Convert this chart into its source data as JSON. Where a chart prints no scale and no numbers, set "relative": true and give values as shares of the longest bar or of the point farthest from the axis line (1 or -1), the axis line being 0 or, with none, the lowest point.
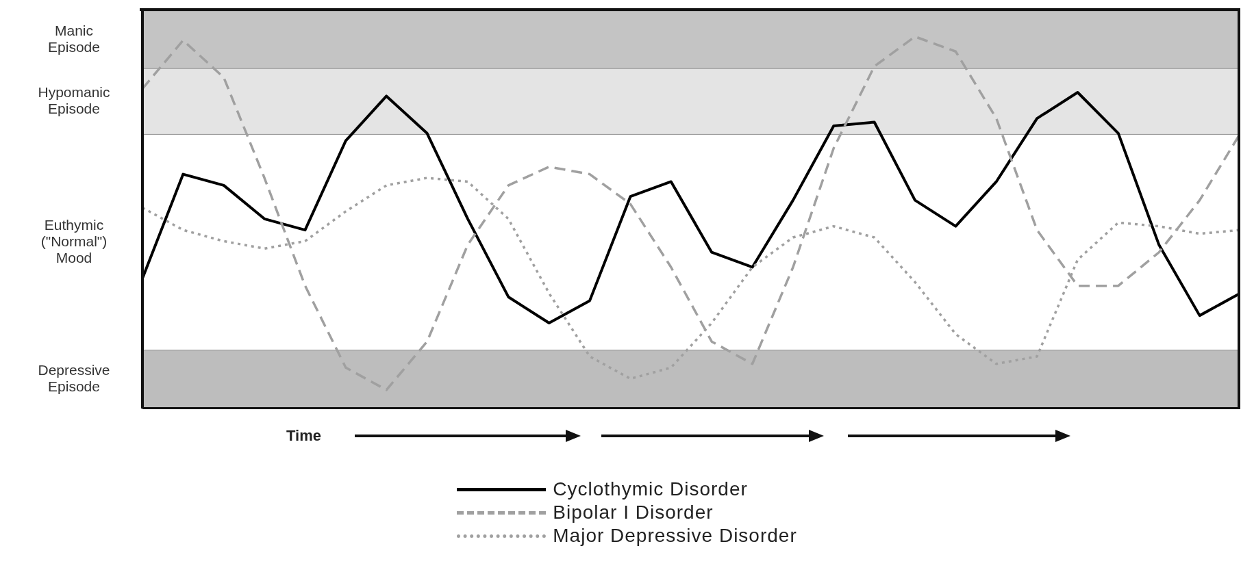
{
  "chart_data": {
    "type": "line",
    "relative": true,
    "xlabel": "Time",
    "legend": "bottom",
    "categories": [
      null,
      null,
      null,
      null,
      null,
      null,
      null,
      null,
      null,
      null,
      null,
      null,
      null,
      null,
      null,
      null,
      null,
      null,
      null,
      null,
      null,
      null,
      null,
      null,
      null,
      null,
      null,
      null
    ],
    "series": [
      {
        "name": "Cyclothymic Disorder",
        "color": "#000000",
        "line_style": "solid",
        "values": [
          0.35,
          0.63,
          0.6,
          0.51,
          0.48,
          0.72,
          0.84,
          0.74,
          0.51,
          0.3,
          0.23,
          0.29,
          0.57,
          0.61,
          0.42,
          0.38,
          0.56,
          0.76,
          0.77,
          0.56,
          0.49,
          0.61,
          0.78,
          0.85,
          0.74,
          0.44,
          0.25,
          0.31
        ]
      },
      {
        "name": "Bipolar I Disorder",
        "color": "#a0a0a0",
        "line_style": "dashed",
        "values": [
          0.86,
          0.99,
          0.89,
          0.62,
          0.33,
          0.11,
          0.05,
          0.18,
          0.44,
          0.6,
          0.65,
          0.63,
          0.55,
          0.38,
          0.18,
          0.12,
          0.38,
          0.7,
          0.92,
          1.0,
          0.96,
          0.78,
          0.48,
          0.33,
          0.33,
          0.42,
          0.56,
          0.74
        ]
      },
      {
        "name": "Major Depressive Disorder",
        "color": "#a0a0a0",
        "line_style": "dotted",
        "values": [
          0.54,
          0.48,
          0.45,
          0.43,
          0.45,
          0.53,
          0.6,
          0.62,
          0.61,
          0.51,
          0.31,
          0.14,
          0.08,
          0.11,
          0.23,
          0.38,
          0.46,
          0.49,
          0.46,
          0.34,
          0.2,
          0.12,
          0.14,
          0.4,
          0.5,
          0.49,
          0.47,
          0.48
        ]
      }
    ],
    "bands": [
      {
        "axis": "y",
        "from": 0.914,
        "to": 1.069,
        "label": "Manic Episode",
        "color": "#c4c4c4"
      },
      {
        "axis": "y",
        "from": 0.737,
        "to": 0.914,
        "label": "Hypomanic Episode",
        "color": "#e4e4e4"
      },
      {
        "axis": "y",
        "from": 0.157,
        "to": 0.737,
        "label": "Euthymic (\"Normal\") Mood",
        "color": "#ffffff"
      },
      {
        "axis": "y",
        "from": 0,
        "to": 0.157,
        "label": "Depressive Episode",
        "color": "#bdbdbd"
      }
    ]
  }
}
